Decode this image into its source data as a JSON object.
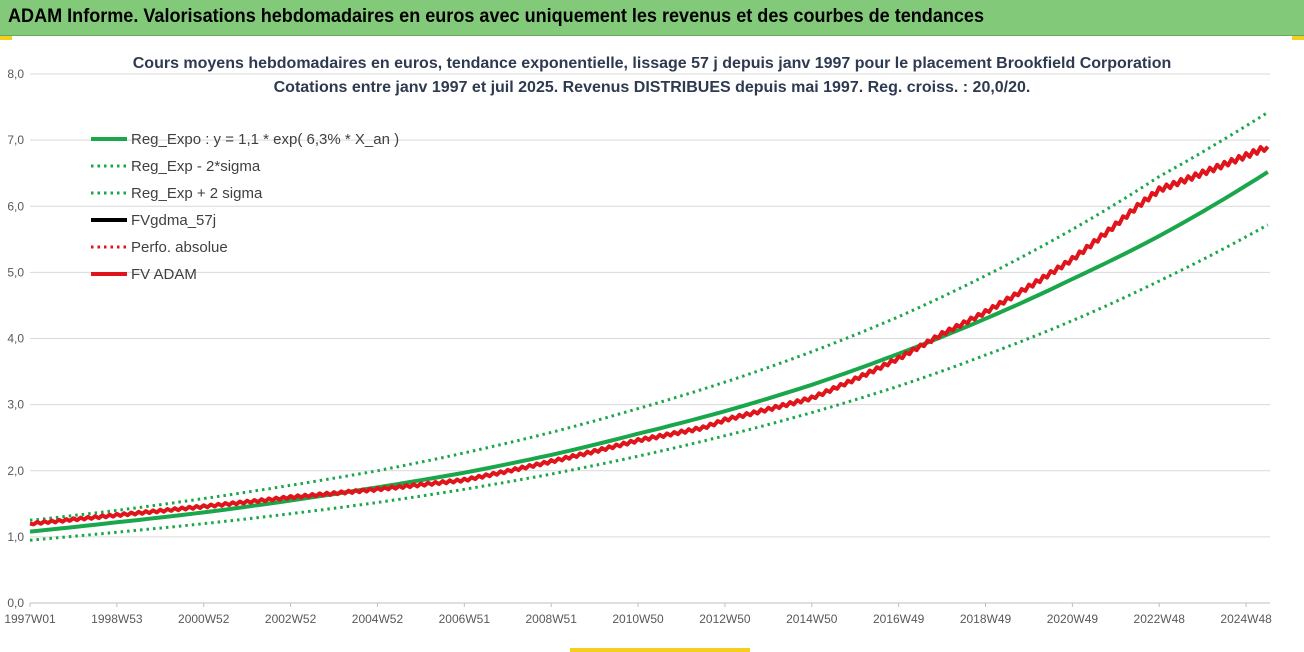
{
  "header": {
    "title": "ADAM Informe. Valorisations hebdomadaires en euros avec uniquement les revenus et des courbes de tendances"
  },
  "colors": {
    "header_bg": "#83c97a",
    "accent": "#f3cf1f",
    "green": "#1aa64a",
    "red": "#e0141b",
    "black": "#000000",
    "grid": "#d9d9d9"
  },
  "chart_data": {
    "type": "line",
    "title": "Cours moyens hebdomadaires en euros, tendance exponentielle, lissage 57 j depuis janv 1997 pour le placement Brookfield Corporation",
    "subtitle": "Cotations entre janv 1997 et juil 2025. Revenus DISTRIBUES depuis mai 1997. Reg.  croiss. : 20,0/20.",
    "ylim": [
      0,
      8
    ],
    "yticks": [
      "0,0",
      "1,0",
      "2,0",
      "3,0",
      "4,0",
      "5,0",
      "6,0",
      "7,0",
      "8,0"
    ],
    "xlim": [
      1997.0,
      2025.55
    ],
    "xticks": [
      {
        "label": "1997W01",
        "x": 1997.0
      },
      {
        "label": "1998W53",
        "x": 1999.0
      },
      {
        "label": "2000W52",
        "x": 2001.0
      },
      {
        "label": "2002W52",
        "x": 2003.0
      },
      {
        "label": "2004W52",
        "x": 2005.0
      },
      {
        "label": "2006W51",
        "x": 2007.0
      },
      {
        "label": "2008W51",
        "x": 2009.0
      },
      {
        "label": "2010W50",
        "x": 2011.0
      },
      {
        "label": "2012W50",
        "x": 2013.0
      },
      {
        "label": "2014W50",
        "x": 2015.0
      },
      {
        "label": "2016W49",
        "x": 2017.0
      },
      {
        "label": "2018W49",
        "x": 2019.0
      },
      {
        "label": "2020W49",
        "x": 2021.0
      },
      {
        "label": "2022W48",
        "x": 2023.0
      },
      {
        "label": "2024W48",
        "x": 2025.0
      }
    ],
    "legend": [
      {
        "label": "Reg_Expo : y = 1,1 * exp( 6,3% *  X_an )",
        "color": "#1aa64a",
        "style": "solid"
      },
      {
        "label": "Reg_Exp - 2*sigma",
        "color": "#1aa64a",
        "style": "dotted"
      },
      {
        "label": "Reg_Exp + 2 sigma",
        "color": "#1aa64a",
        "style": "dotted"
      },
      {
        "label": "FVgdma_57j",
        "color": "#000000",
        "style": "solid"
      },
      {
        "label": "Perfo. absolue",
        "color": "#e0141b",
        "style": "dotted"
      },
      {
        "label": "FV ADAM",
        "color": "#e0141b",
        "style": "solid"
      }
    ],
    "legend_position": "top-left",
    "series": [
      {
        "name": "Reg_Expo : y = 1,1 * exp( 6,3% *  X_an )",
        "color": "#1aa64a",
        "style": "solid",
        "x": [
          1997.0,
          1999.0,
          2001.0,
          2003.0,
          2005.0,
          2007.0,
          2009.0,
          2011.0,
          2013.0,
          2015.0,
          2017.0,
          2019.0,
          2021.0,
          2023.0,
          2025.5
        ],
        "y": [
          1.08,
          1.22,
          1.37,
          1.55,
          1.75,
          1.97,
          2.24,
          2.56,
          2.9,
          3.3,
          3.77,
          4.3,
          4.9,
          5.55,
          6.52
        ]
      },
      {
        "name": "Reg_Exp - 2*sigma",
        "color": "#1aa64a",
        "style": "dotted",
        "x": [
          1997.0,
          1999.0,
          2001.0,
          2003.0,
          2005.0,
          2007.0,
          2009.0,
          2011.0,
          2013.0,
          2015.0,
          2017.0,
          2019.0,
          2021.0,
          2023.0,
          2025.5
        ],
        "y": [
          0.95,
          1.07,
          1.2,
          1.35,
          1.52,
          1.72,
          1.95,
          2.22,
          2.53,
          2.88,
          3.28,
          3.75,
          4.27,
          4.87,
          5.72
        ]
      },
      {
        "name": "Reg_Exp + 2 sigma",
        "color": "#1aa64a",
        "style": "dotted",
        "x": [
          1997.0,
          1999.0,
          2001.0,
          2003.0,
          2005.0,
          2007.0,
          2009.0,
          2011.0,
          2013.0,
          2015.0,
          2017.0,
          2019.0,
          2021.0,
          2023.0,
          2025.5
        ],
        "y": [
          1.25,
          1.4,
          1.58,
          1.78,
          2.0,
          2.27,
          2.58,
          2.94,
          3.34,
          3.8,
          4.33,
          4.95,
          5.65,
          6.45,
          7.42
        ]
      },
      {
        "name": "FV ADAM",
        "color": "#e0141b",
        "style": "solid",
        "x": [
          1997.0,
          1999.0,
          2001.0,
          2003.0,
          2005.0,
          2007.0,
          2009.0,
          2011.0,
          2012.5,
          2013.0,
          2015.0,
          2017.0,
          2018.0,
          2019.0,
          2021.0,
          2022.5,
          2023.0,
          2025.5
        ],
        "y": [
          1.2,
          1.33,
          1.46,
          1.6,
          1.72,
          1.86,
          2.14,
          2.46,
          2.65,
          2.77,
          3.1,
          3.7,
          4.07,
          4.4,
          5.2,
          6.0,
          6.25,
          6.9
        ]
      }
    ]
  }
}
